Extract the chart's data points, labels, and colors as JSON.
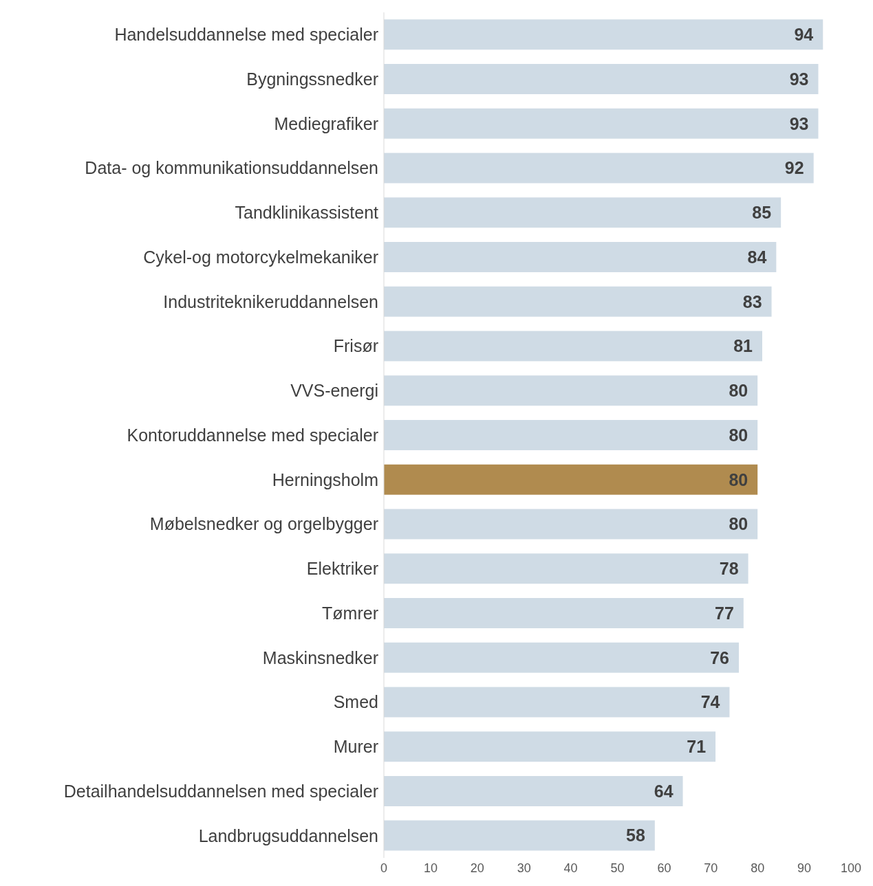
{
  "chart_data": {
    "type": "bar",
    "orientation": "horizontal",
    "categories": [
      "Handelsuddannelse med specialer",
      "Bygningssnedker",
      "Mediegrafiker",
      "Data- og kommunikationsuddannelsen",
      "Tandklinikassistent",
      "Cykel-og motorcykelmekaniker",
      "Industriteknikeruddannelsen",
      "Frisør",
      "VVS-energi",
      "Kontoruddannelse med specialer",
      "Herningsholm",
      "Møbelsnedker og orgelbygger",
      "Elektriker",
      "Tømrer",
      "Maskinsnedker",
      "Smed",
      "Murer",
      "Detailhandelsuddannelsen med specialer",
      "Landbrugsuddannelsen"
    ],
    "values": [
      94,
      93,
      93,
      92,
      85,
      84,
      83,
      81,
      80,
      80,
      80,
      80,
      78,
      77,
      76,
      74,
      71,
      64,
      58
    ],
    "colors": [
      "#cfdbe5",
      "#cfdbe5",
      "#cfdbe5",
      "#cfdbe5",
      "#cfdbe5",
      "#cfdbe5",
      "#cfdbe5",
      "#cfdbe5",
      "#cfdbe5",
      "#cfdbe5",
      "#b08b4f",
      "#cfdbe5",
      "#cfdbe5",
      "#cfdbe5",
      "#cfdbe5",
      "#cfdbe5",
      "#cfdbe5",
      "#cfdbe5",
      "#cfdbe5"
    ],
    "data_labels": true,
    "xlim": [
      0,
      100
    ],
    "xticks": [
      0,
      10,
      20,
      30,
      40,
      50,
      60,
      70,
      80,
      90,
      100
    ]
  }
}
